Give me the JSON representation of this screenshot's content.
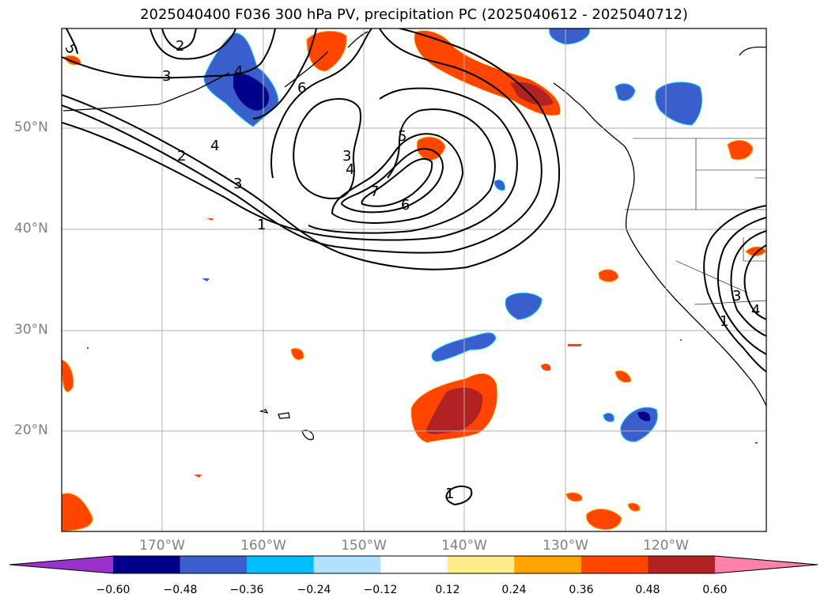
{
  "title": "2025040400 F036 300 hPa PV, precipitation PC (2025040612 - 2025040712)",
  "lat_labels": [
    "50°N",
    "40°N",
    "30°N",
    "20°N"
  ],
  "lon_labels": [
    "170°W",
    "160°W",
    "150°W",
    "140°W",
    "130°W",
    "120°W"
  ],
  "colorbar": {
    "ticks": [
      "−0.60",
      "−0.48",
      "−0.36",
      "−0.24",
      "−0.12",
      "0.12",
      "0.24",
      "0.36",
      "0.48",
      "0.60"
    ],
    "colors": [
      "#9932cc",
      "#00008b",
      "#3a5fcd",
      "#00bfff",
      "#b0e2ff",
      "#ffffff",
      "#ffec8b",
      "#ffa500",
      "#ff4500",
      "#b22222",
      "#ff82ab"
    ]
  },
  "contour_labels": [
    "5",
    "2",
    "3",
    "4",
    "6",
    "5",
    "3",
    "4",
    "7",
    "6",
    "2",
    "4",
    "3",
    "1",
    "1",
    "3",
    "4",
    "1"
  ]
}
